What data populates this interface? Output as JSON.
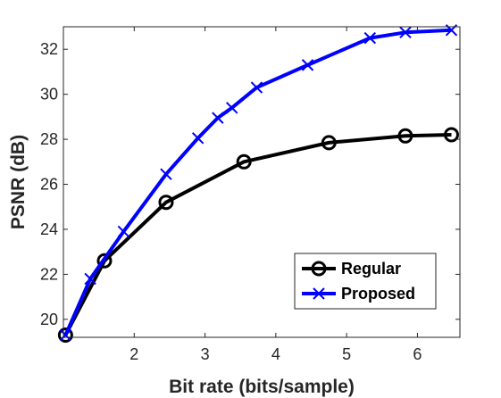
{
  "chart_data": {
    "type": "line",
    "xlabel": "Bit rate (bits/sample)",
    "ylabel": "PSNR (dB)",
    "xlim": [
      1.0,
      6.6
    ],
    "ylim": [
      19.2,
      33.0
    ],
    "xticks": [
      2,
      3,
      4,
      5,
      6
    ],
    "xtick_labels": [
      "2",
      "3",
      "4",
      "5",
      "6"
    ],
    "yticks": [
      20,
      22,
      24,
      26,
      28,
      30,
      32
    ],
    "ytick_labels": [
      "20",
      "22",
      "24",
      "26",
      "28",
      "30",
      "32"
    ],
    "grid": false,
    "legend_position": "bottom-right",
    "series": [
      {
        "name": "Regular",
        "color": "#000000",
        "marker": "circle",
        "x": [
          1.03,
          1.58,
          2.45,
          3.55,
          4.75,
          5.83,
          6.48
        ],
        "y": [
          19.3,
          22.6,
          25.2,
          27.0,
          27.85,
          28.15,
          28.2
        ]
      },
      {
        "name": "Proposed",
        "color": "#0000FF",
        "marker": "x",
        "x": [
          1.03,
          1.38,
          1.85,
          2.45,
          2.9,
          3.18,
          3.38,
          3.73,
          4.45,
          5.33,
          5.83,
          6.48
        ],
        "y": [
          19.3,
          21.8,
          23.9,
          26.45,
          28.05,
          28.95,
          29.4,
          30.3,
          31.3,
          32.5,
          32.75,
          32.85
        ]
      }
    ]
  }
}
